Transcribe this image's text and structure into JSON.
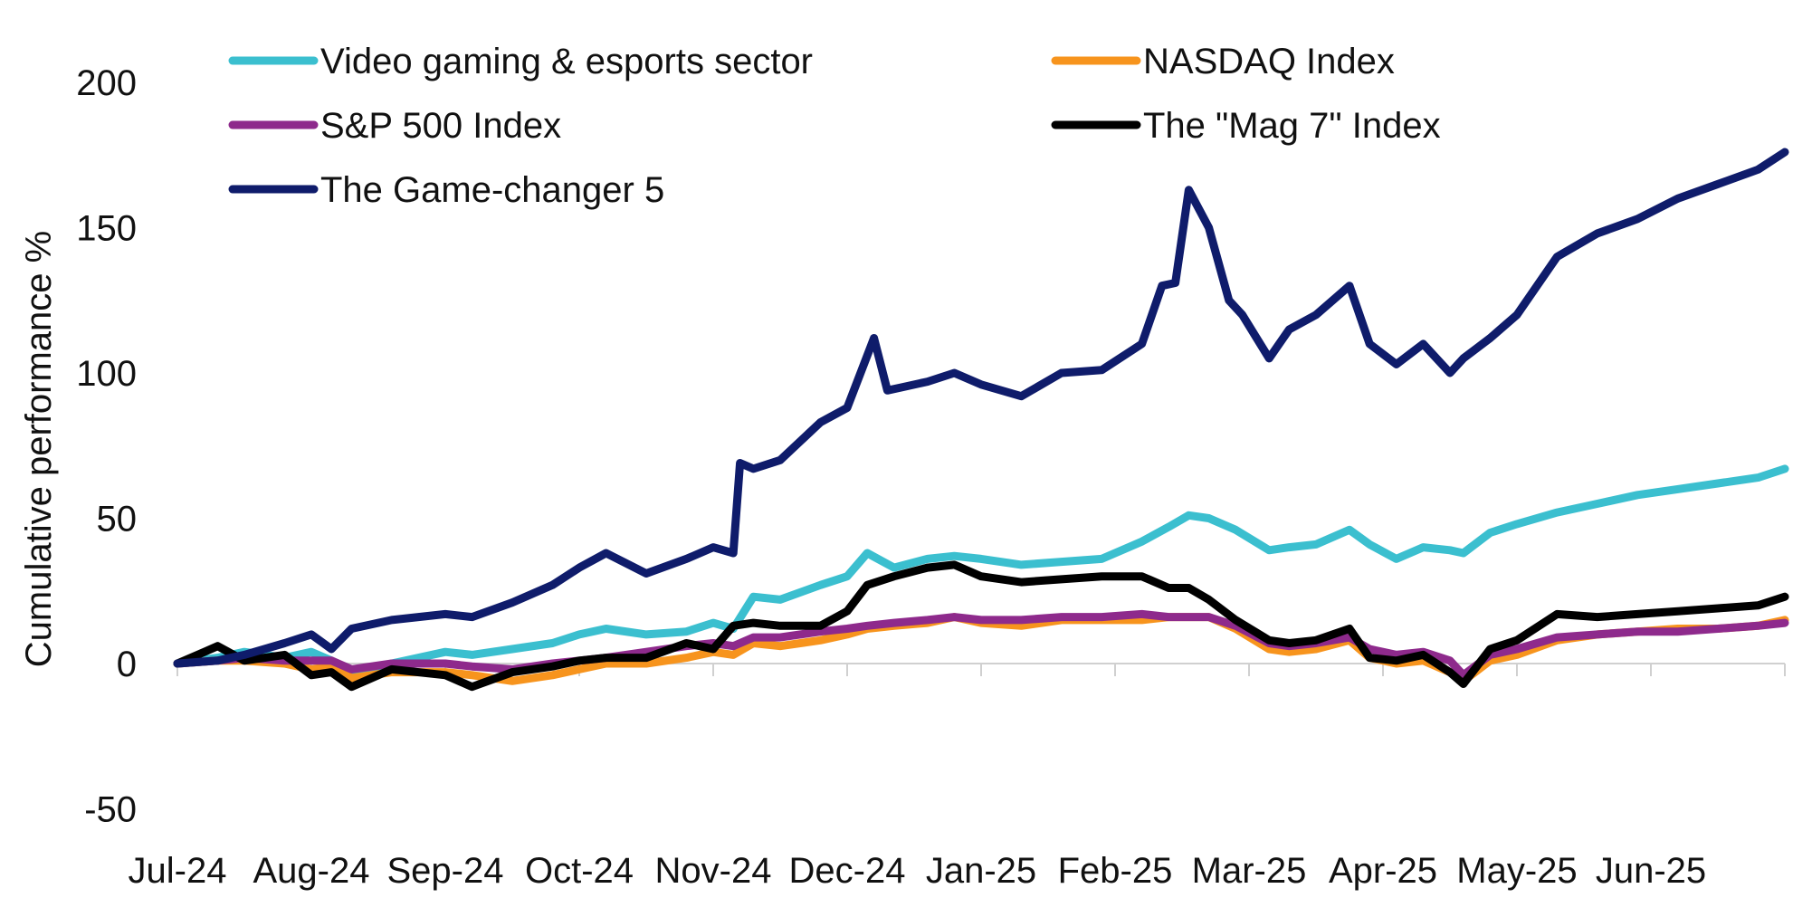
{
  "chart_data": {
    "type": "line",
    "title": "",
    "xlabel": "",
    "ylabel": "Cumulative performance %",
    "ylim": [
      -50,
      200
    ],
    "yticks": [
      -50,
      0,
      50,
      100,
      150,
      200
    ],
    "xlim": [
      0,
      12
    ],
    "categories": [
      "Jul-24",
      "Aug-24",
      "Sep-24",
      "Oct-24",
      "Nov-24",
      "Dec-24",
      "Jan-25",
      "Feb-25",
      "Mar-25",
      "Apr-25",
      "May-25",
      "Jun-25"
    ],
    "grid": false,
    "legend_position": "top",
    "series": [
      {
        "name": "Video gaming & esports sector",
        "color": "#3bbfcf",
        "x": [
          0,
          0.3,
          0.5,
          0.8,
          1.0,
          1.15,
          1.3,
          1.6,
          2.0,
          2.2,
          2.5,
          2.8,
          3.0,
          3.2,
          3.5,
          3.8,
          4.0,
          4.15,
          4.3,
          4.5,
          4.8,
          5.0,
          5.15,
          5.35,
          5.6,
          5.8,
          6.0,
          6.3,
          6.6,
          6.9,
          7.2,
          7.4,
          7.55,
          7.7,
          7.9,
          8.15,
          8.3,
          8.5,
          8.75,
          8.9,
          9.1,
          9.3,
          9.5,
          9.6,
          9.8,
          10.0,
          10.3,
          10.6,
          10.9,
          11.2,
          11.5,
          11.8,
          12.0
        ],
        "values": [
          0,
          2,
          4,
          2,
          4,
          1,
          -3,
          0,
          4,
          3,
          5,
          7,
          10,
          12,
          10,
          11,
          14,
          12,
          23,
          22,
          27,
          30,
          38,
          33,
          36,
          37,
          36,
          34,
          35,
          36,
          42,
          47,
          51,
          50,
          46,
          39,
          40,
          41,
          46,
          41,
          36,
          40,
          39,
          38,
          45,
          48,
          52,
          55,
          58,
          60,
          62,
          64,
          67
        ]
      },
      {
        "name": "NASDAQ Index",
        "color": "#f7941d",
        "x": [
          0,
          0.3,
          0.5,
          0.8,
          1.0,
          1.15,
          1.3,
          1.6,
          2.0,
          2.2,
          2.5,
          2.8,
          3.0,
          3.2,
          3.5,
          3.8,
          4.0,
          4.15,
          4.3,
          4.5,
          4.8,
          5.0,
          5.15,
          5.35,
          5.6,
          5.8,
          6.0,
          6.3,
          6.6,
          6.9,
          7.2,
          7.4,
          7.55,
          7.7,
          7.9,
          8.15,
          8.3,
          8.5,
          8.75,
          8.9,
          9.1,
          9.3,
          9.5,
          9.6,
          9.8,
          10.0,
          10.3,
          10.6,
          10.9,
          11.2,
          11.5,
          11.8,
          12.0
        ],
        "values": [
          0,
          1,
          1,
          0,
          -2,
          -1,
          -5,
          -3,
          -3,
          -4,
          -6,
          -4,
          -2,
          0,
          0,
          2,
          4,
          3,
          7,
          6,
          8,
          10,
          12,
          13,
          14,
          16,
          14,
          13,
          15,
          15,
          15,
          16,
          16,
          16,
          12,
          5,
          4,
          5,
          8,
          2,
          0,
          1,
          -3,
          -6,
          1,
          3,
          8,
          10,
          11,
          12,
          12,
          13,
          15
        ]
      },
      {
        "name": "S&P 500 Index",
        "color": "#8e2a8c",
        "x": [
          0,
          0.3,
          0.5,
          0.8,
          1.0,
          1.15,
          1.3,
          1.6,
          2.0,
          2.2,
          2.5,
          2.8,
          3.0,
          3.2,
          3.5,
          3.8,
          4.0,
          4.15,
          4.3,
          4.5,
          4.8,
          5.0,
          5.15,
          5.35,
          5.6,
          5.8,
          6.0,
          6.3,
          6.6,
          6.9,
          7.2,
          7.4,
          7.55,
          7.7,
          7.9,
          8.15,
          8.3,
          8.5,
          8.75,
          8.9,
          9.1,
          9.3,
          9.5,
          9.6,
          9.8,
          10.0,
          10.3,
          10.6,
          10.9,
          11.2,
          11.5,
          11.8,
          12.0
        ],
        "values": [
          0,
          1,
          2,
          1,
          1,
          1,
          -2,
          0,
          0,
          -1,
          -2,
          0,
          1,
          2,
          4,
          6,
          7,
          6,
          9,
          9,
          11,
          12,
          13,
          14,
          15,
          16,
          15,
          15,
          16,
          16,
          17,
          16,
          16,
          16,
          13,
          7,
          6,
          7,
          9,
          5,
          3,
          4,
          1,
          -4,
          3,
          5,
          9,
          10,
          11,
          11,
          12,
          13,
          14
        ]
      },
      {
        "name": "The \"Mag 7\" Index",
        "color": "#000000",
        "x": [
          0,
          0.2,
          0.3,
          0.5,
          0.8,
          1.0,
          1.15,
          1.3,
          1.6,
          2.0,
          2.2,
          2.5,
          2.8,
          3.0,
          3.2,
          3.5,
          3.8,
          4.0,
          4.15,
          4.3,
          4.5,
          4.8,
          5.0,
          5.15,
          5.35,
          5.6,
          5.8,
          6.0,
          6.3,
          6.6,
          6.9,
          7.2,
          7.4,
          7.55,
          7.7,
          7.9,
          8.15,
          8.3,
          8.5,
          8.75,
          8.9,
          9.1,
          9.3,
          9.5,
          9.6,
          9.8,
          10.0,
          10.3,
          10.6,
          10.9,
          11.2,
          11.5,
          11.8,
          12.0
        ],
        "values": [
          0,
          4,
          6,
          1,
          3,
          -4,
          -3,
          -8,
          -2,
          -4,
          -8,
          -3,
          -1,
          1,
          2,
          2,
          7,
          5,
          13,
          14,
          13,
          13,
          18,
          27,
          30,
          33,
          34,
          30,
          28,
          29,
          30,
          30,
          26,
          26,
          22,
          15,
          8,
          7,
          8,
          12,
          2,
          1,
          3,
          -3,
          -7,
          5,
          8,
          17,
          16,
          17,
          18,
          19,
          20,
          23
        ]
      },
      {
        "name": "The Game-changer 5",
        "color": "#0f1c6b",
        "x": [
          0,
          0.3,
          0.5,
          0.8,
          1.0,
          1.15,
          1.3,
          1.6,
          2.0,
          2.2,
          2.5,
          2.8,
          3.0,
          3.2,
          3.5,
          3.8,
          4.0,
          4.15,
          4.2,
          4.3,
          4.5,
          4.8,
          5.0,
          5.1,
          5.2,
          5.3,
          5.4,
          5.6,
          5.8,
          6.0,
          6.3,
          6.6,
          6.9,
          7.2,
          7.35,
          7.45,
          7.55,
          7.7,
          7.85,
          7.95,
          8.15,
          8.3,
          8.5,
          8.75,
          8.9,
          9.1,
          9.3,
          9.5,
          9.6,
          9.8,
          10.0,
          10.3,
          10.6,
          10.9,
          11.2,
          11.5,
          11.8,
          12.0
        ],
        "values": [
          0,
          1,
          3,
          7,
          10,
          5,
          12,
          15,
          17,
          16,
          21,
          27,
          33,
          38,
          31,
          36,
          40,
          38,
          69,
          67,
          70,
          83,
          88,
          100,
          112,
          94,
          95,
          97,
          100,
          96,
          92,
          100,
          101,
          110,
          130,
          131,
          163,
          150,
          125,
          120,
          105,
          115,
          120,
          130,
          110,
          103,
          110,
          100,
          105,
          112,
          120,
          140,
          148,
          153,
          160,
          165,
          170,
          176
        ]
      }
    ]
  }
}
